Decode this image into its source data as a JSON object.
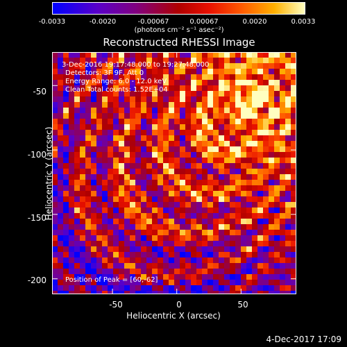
{
  "colorbar": {
    "ticks": [
      "-0.0033",
      "-0.0020",
      "-0.00067",
      "0.00067",
      "0.0020",
      "0.0033"
    ],
    "units": "(photons cm⁻² s⁻¹ asec⁻²)"
  },
  "chart_data": {
    "type": "heatmap",
    "title": "Reconstructed RHESSI Image",
    "xlabel": "Heliocentric X (arcsec)",
    "ylabel": "Heliocentric Y (arcsec)",
    "xlim": [
      -97,
      93
    ],
    "ylim": [
      -212,
      -24
    ],
    "xticks": [
      "-50",
      "0",
      "50"
    ],
    "yticks": [
      "-50",
      "-100",
      "-150",
      "-200"
    ],
    "zlim": [
      -0.0033,
      0.0033
    ],
    "peak": [
      60,
      -62
    ],
    "colors": {
      "low": "#0000ff",
      "mid": "#b00000",
      "high": "#ffffc0"
    }
  },
  "annotations": {
    "time": "3-Dec-2016 19:17:48.000 to 19:27:48.000",
    "detectors": "Detectors: 3F 9F, Att 0",
    "energy": "Energy Range: 6.0 - 12.0 keV",
    "clean": "Clean     Total counts: 1.52E+04",
    "peak": "Position of Peak = [60,-62]"
  },
  "footer_date": "4-Dec-2017 17:09"
}
